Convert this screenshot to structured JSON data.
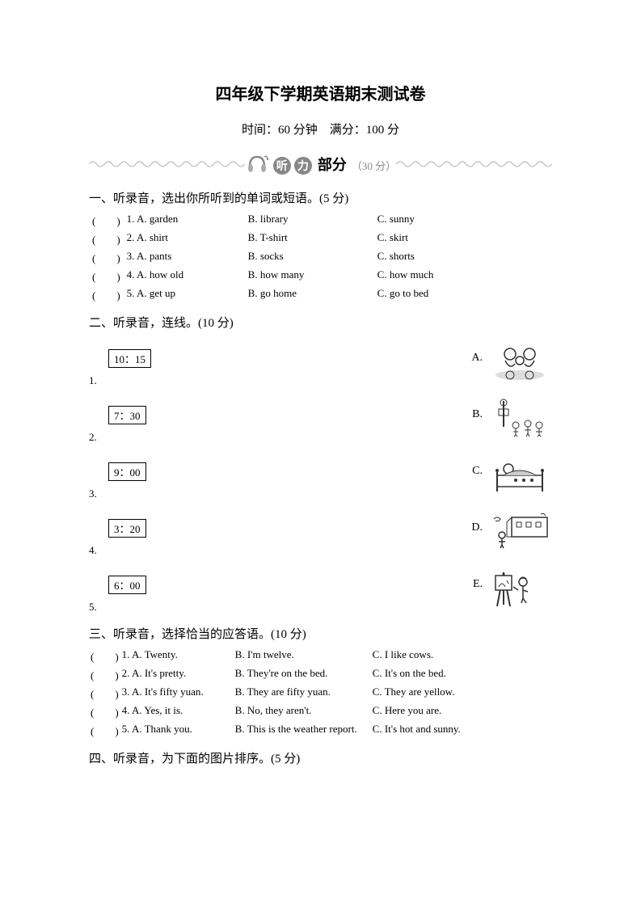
{
  "title": "四年级下学期英语期末测试卷",
  "subtitle": "时间：60 分钟　满分：100 分",
  "banner": {
    "char1": "听",
    "char2": "力",
    "suffix": "部分",
    "points": "（30 分）"
  },
  "section1": {
    "heading": "一、听录音，选出你所听到的单词或短语。(5 分)",
    "rows": [
      {
        "paren": "(　　)",
        "num": "1. A. garden",
        "b": "B. library",
        "c": "C. sunny"
      },
      {
        "paren": "(　　)",
        "num": "2. A. shirt",
        "b": "B. T-shirt",
        "c": "C. skirt"
      },
      {
        "paren": "(　　)",
        "num": "3. A. pants",
        "b": "B. socks",
        "c": "C. shorts"
      },
      {
        "paren": "(　　)",
        "num": "4. A. how old",
        "b": "B. how many",
        "c": "C. how much"
      },
      {
        "paren": "(　　)",
        "num": "5. A. get up",
        "b": "B. go home",
        "c": "C. go to bed"
      }
    ]
  },
  "section2": {
    "heading": "二、听录音，连线。(10 分)",
    "items": [
      {
        "num": "1.",
        "time": "10：15",
        "letter": "A.",
        "img": "family-dinner"
      },
      {
        "num": "2.",
        "time": "7：30",
        "letter": "B.",
        "img": "playground"
      },
      {
        "num": "3.",
        "time": "9：00",
        "letter": "C.",
        "img": "sleeping-bed"
      },
      {
        "num": "4.",
        "time": "3：20",
        "letter": "D.",
        "img": "school-walking"
      },
      {
        "num": "5.",
        "time": "6：00",
        "letter": "E.",
        "img": "painting-easel"
      }
    ]
  },
  "section3": {
    "heading": "三、听录音，选择恰当的应答语。(10 分)",
    "rows": [
      {
        "paren": "(　　)",
        "a": "1. A. Twenty.",
        "b": "B. I'm twelve.",
        "c": "C. I like cows."
      },
      {
        "paren": "(　　)",
        "a": "2. A. It's pretty.",
        "b": "B. They're on the bed.",
        "c": "C. It's on the bed."
      },
      {
        "paren": "(　　)",
        "a": "3. A. It's fifty yuan.",
        "b": "B. They are fifty yuan.",
        "c": "C. They are yellow."
      },
      {
        "paren": "(　　)",
        "a": "4. A. Yes, it is.",
        "b": "B. No, they aren't.",
        "c": "C. Here you are."
      },
      {
        "paren": "(　　)",
        "a": "5. A. Thank you.",
        "b": "B. This is the weather report.",
        "c": "C. It's hot and sunny."
      }
    ]
  },
  "section4": {
    "heading": "四、听录音，为下面的图片排序。(5 分)"
  }
}
